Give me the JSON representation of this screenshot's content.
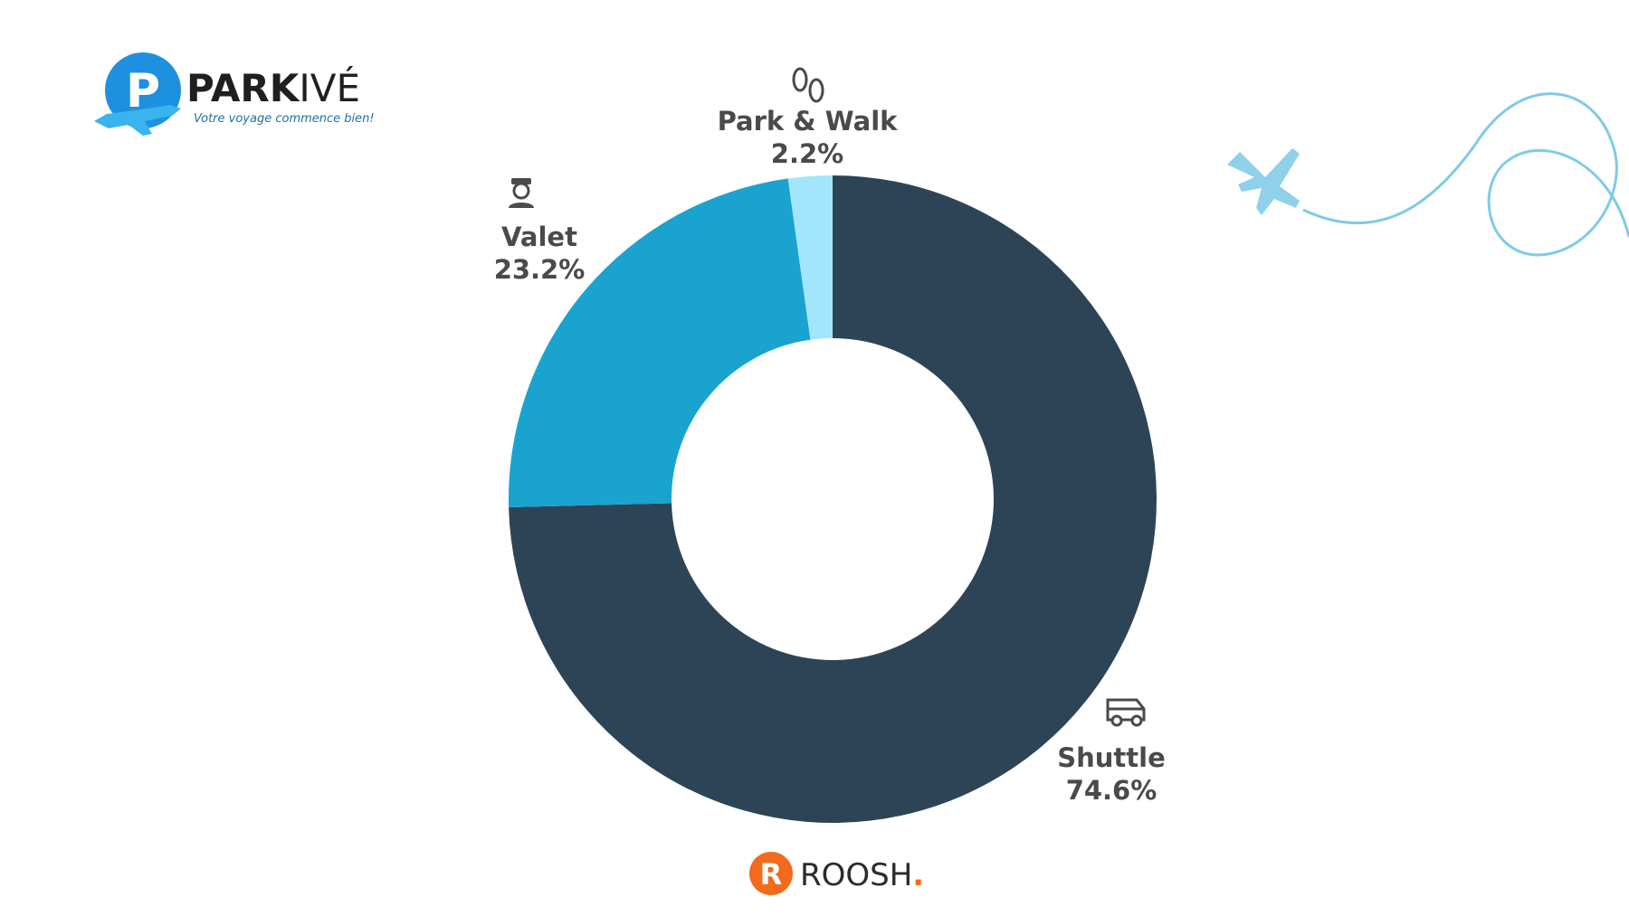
{
  "brand": {
    "parkive_name_a": "PARK",
    "parkive_name_b": "IVÉ",
    "parkive_tagline": "Votre voyage commence bien!",
    "roosh_name": "ROOSH",
    "roosh_dot": ".",
    "logo_letter_p": "P",
    "logo_letter_r": "R"
  },
  "colors": {
    "shuttle": "#2d4457",
    "valet": "#1aa3cf",
    "park_walk": "#a3e6fb",
    "label": "#4a4a4a",
    "parkive_blue": "#1e90e0",
    "roosh_orange": "#f26a1b",
    "decor_blue": "#7fcbe7"
  },
  "chart_data": {
    "type": "pie",
    "variant": "donut",
    "title": "",
    "legend": "none",
    "start": "top",
    "direction": "clockwise",
    "slices": [
      {
        "label": "Shuttle",
        "value": 74.6,
        "display": "74.6%",
        "color": "#2d4457",
        "icon": "shuttle-van-icon"
      },
      {
        "label": "Valet",
        "value": 23.2,
        "display": "23.2%",
        "color": "#1aa3cf",
        "icon": "valet-attendant-icon"
      },
      {
        "label": "Park & Walk",
        "value": 2.2,
        "display": "2.2%",
        "color": "#a3e6fb",
        "icon": "footprints-icon"
      }
    ]
  }
}
